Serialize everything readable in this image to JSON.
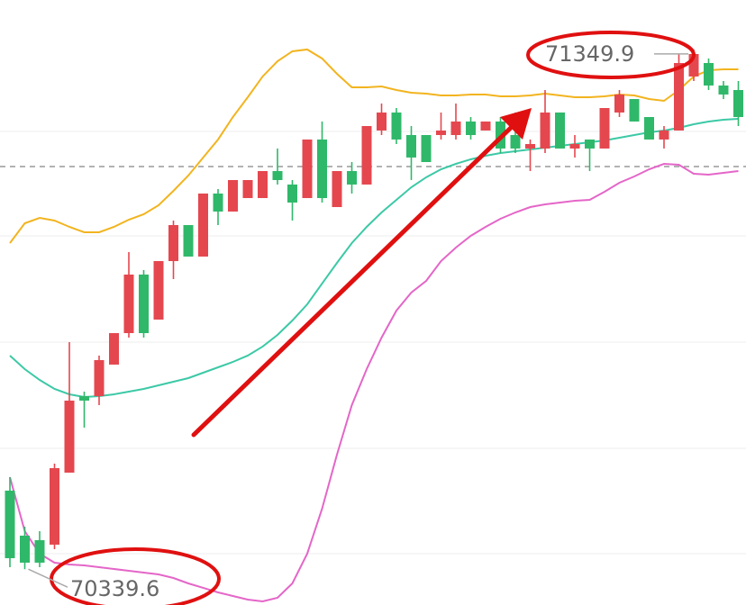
{
  "chart_data": {
    "type": "candlestick",
    "ylim": [
      70270,
      71446
    ],
    "up_color": "#e5474f",
    "down_color": "#2fb86a",
    "open": [
      70492.3,
      70404.8,
      70396,
      70387.3,
      70527.3,
      70676,
      70676,
      70737.3,
      70798.5,
      70912.3,
      70824.8,
      70938.5,
      71008.5,
      70947.3,
      71069.8,
      71034.8,
      71061,
      71061,
      71113.5,
      71087.3,
      71061,
      71174.8,
      71043.5,
      71113.5,
      71087.3,
      71192.3,
      71227.3,
      71183.5,
      71183.5,
      71183.5,
      71183.5,
      71209.8,
      71192.3,
      71209.8,
      71183.5,
      71157.3,
      71157.3,
      71227.3,
      71157.3,
      71174.8,
      71157.3,
      71227.3,
      71253.5,
      71218.5,
      71174.8,
      71192.3,
      71297.3,
      71323.5,
      71279.8,
      71271
    ],
    "high": [
      70518.5,
      70422.3,
      70413.5,
      70544.8,
      70781,
      70684.8,
      70754.8,
      70798.5,
      70956,
      70921,
      70938.5,
      71017.3,
      71008.5,
      71069.8,
      71078.5,
      71096,
      71096,
      71113.5,
      71157.3,
      71096,
      71174.8,
      71209.8,
      71113.5,
      71131,
      71201,
      71244.8,
      71236,
      71201,
      71183.5,
      71227.3,
      71244.8,
      71218.5,
      71209.8,
      71218.5,
      71227.3,
      71174.8,
      71271,
      71227.3,
      71183.5,
      71174.8,
      71236,
      71271,
      71253.5,
      71218.5,
      71201,
      71341,
      71349.9,
      71332.3,
      71288.5,
      71288.5
    ],
    "low": [
      70343.5,
      70339.6,
      70343.5,
      70378.5,
      70527.3,
      70614.8,
      70658.5,
      70737.3,
      70789.8,
      70789.8,
      70824.8,
      70903.5,
      70947.3,
      70947.3,
      71008.5,
      71034.8,
      71061,
      71061,
      71087.3,
      71017.3,
      71061,
      71052.3,
      71043.5,
      71069.8,
      71087.3,
      71183.5,
      71166,
      71096,
      71131,
      71174.8,
      71174.8,
      71174.8,
      71192.3,
      71148.5,
      71148.5,
      71113.5,
      71148.5,
      71157.3,
      71139.8,
      71113.5,
      71157.3,
      71218.5,
      71209.8,
      71174.8,
      71157.3,
      71192.3,
      71288.5,
      71271,
      71253.5,
      71201
    ],
    "close": [
      70361,
      70352.3,
      70352.3,
      70536,
      70667.3,
      70667.3,
      70746,
      70798.5,
      70912.3,
      70798.5,
      70938.5,
      71008.5,
      70947.3,
      71069.8,
      71034.8,
      71096,
      71096,
      71113.5,
      71096,
      71052.3,
      71174.8,
      71061,
      71113.5,
      71087.3,
      71201,
      71227.3,
      71174.8,
      71139.8,
      71131,
      71192.3,
      71209.8,
      71183.5,
      71209.8,
      71157.3,
      71157.3,
      71166,
      71227.3,
      71157.3,
      71166,
      71157.3,
      71236,
      71262.3,
      71209.8,
      71174.8,
      71192.3,
      71323.5,
      71341,
      71279.8,
      71262.3,
      71218.5
    ],
    "bands": [
      {
        "color": "#f2b41f",
        "values": [
          70973.5,
          71012,
          71022.5,
          71017.3,
          71005,
          70994.5,
          70994.5,
          71005,
          71019,
          71029.5,
          71047,
          71075,
          71104.8,
          71139.8,
          71174.8,
          71218.5,
          71257,
          71297.3,
          71327,
          71346.3,
          71349.8,
          71332.3,
          71302.5,
          71276.3,
          71276.3,
          71278,
          71271,
          71265.8,
          71264,
          71260.5,
          71260.5,
          71262.3,
          71262.3,
          71258.8,
          71258.8,
          71260.5,
          71264,
          71260.5,
          71257,
          71257,
          71258.8,
          71262.3,
          71260.5,
          71253.5,
          71250,
          71271,
          71297.3,
          71309.5,
          71311.3,
          71311.3
        ]
      },
      {
        "color": "#3cc9a6",
        "values": [
          70754.8,
          70728.5,
          70707.5,
          70690,
          70679.5,
          70674.3,
          70676,
          70679.5,
          70684.8,
          70690,
          70697,
          70704,
          70711,
          70721.5,
          70732,
          70742.5,
          70754.8,
          70772.3,
          70795,
          70823,
          70854.5,
          70894.8,
          70935,
          70973.5,
          71005,
          71033,
          71057.5,
          71082,
          71101.3,
          71117,
          71127.5,
          71136.3,
          71143.3,
          71148.5,
          71152,
          71155.5,
          71159,
          71162.5,
          71166,
          71169.5,
          71173,
          71178.3,
          71183.5,
          71188.8,
          71192.3,
          71197.5,
          71204.5,
          71209.8,
          71213.3,
          71215
        ]
      },
      {
        "color": "#e466c8",
        "values": [
          70518.5,
          70413.5,
          70369.8,
          70352.3,
          70348.8,
          70347,
          70343.5,
          70340,
          70336.5,
          70333,
          70329.5,
          70322.5,
          70312,
          70303.3,
          70294.5,
          70287.5,
          70280.5,
          70277,
          70284,
          70312,
          70369.8,
          70457.3,
          70562.3,
          70658.5,
          70728.5,
          70789.8,
          70842.3,
          70877.3,
          70900,
          70938.5,
          70964.8,
          70987.5,
          71005,
          71020.8,
          71033,
          71043.5,
          71048.8,
          71052.3,
          71055.8,
          71057.5,
          71073.3,
          71090.8,
          71103,
          71117,
          71127.5,
          71125.8,
          71108.3,
          71106.5,
          71110,
          71113.5
        ]
      }
    ],
    "price_line": 71122.3
  }
}
